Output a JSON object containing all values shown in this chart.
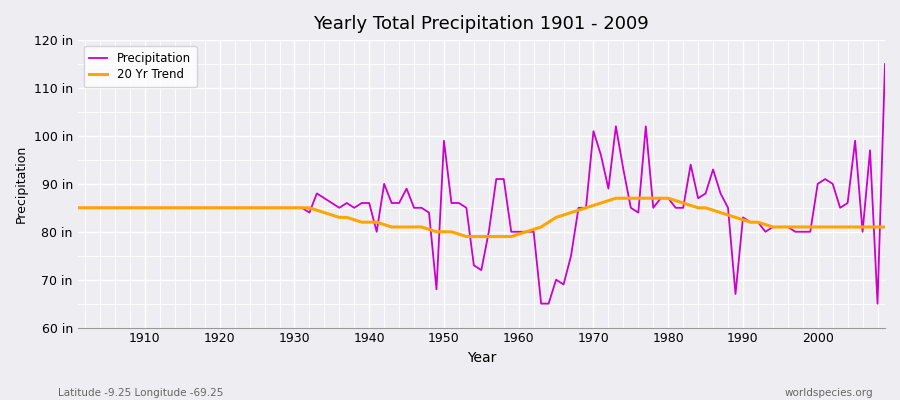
{
  "title": "Yearly Total Precipitation 1901 - 2009",
  "xlabel": "Year",
  "ylabel": "Precipitation",
  "xlim": [
    1901,
    2009
  ],
  "ylim": [
    60,
    120
  ],
  "yticks": [
    60,
    70,
    80,
    90,
    100,
    110,
    120
  ],
  "ytick_labels": [
    "60 in",
    "70 in",
    "80 in",
    "90 in",
    "100 in",
    "110 in",
    "120 in"
  ],
  "xticks": [
    1910,
    1920,
    1930,
    1940,
    1950,
    1960,
    1970,
    1980,
    1990,
    2000
  ],
  "precipitation_color": "#CC00CC",
  "trend_color": "#FFA500",
  "background_color": "#EEEEF2",
  "plot_bg_color": "#EEEEF2",
  "grid_color": "#FFFFFF",
  "subtitle": "Latitude -9.25 Longitude -69.25",
  "watermark": "worldspecies.org",
  "years": [
    1901,
    1902,
    1903,
    1904,
    1905,
    1906,
    1907,
    1908,
    1909,
    1910,
    1911,
    1912,
    1913,
    1914,
    1915,
    1916,
    1917,
    1918,
    1919,
    1920,
    1921,
    1922,
    1923,
    1924,
    1925,
    1926,
    1927,
    1928,
    1929,
    1930,
    1931,
    1932,
    1933,
    1934,
    1935,
    1936,
    1937,
    1938,
    1939,
    1940,
    1941,
    1942,
    1943,
    1944,
    1945,
    1946,
    1947,
    1948,
    1949,
    1950,
    1951,
    1952,
    1953,
    1954,
    1955,
    1956,
    1957,
    1958,
    1959,
    1960,
    1961,
    1962,
    1963,
    1964,
    1965,
    1966,
    1967,
    1968,
    1969,
    1970,
    1971,
    1972,
    1973,
    1974,
    1975,
    1976,
    1977,
    1978,
    1979,
    1980,
    1981,
    1982,
    1983,
    1984,
    1985,
    1986,
    1987,
    1988,
    1989,
    1990,
    1991,
    1992,
    1993,
    1994,
    1995,
    1996,
    1997,
    1998,
    1999,
    2000,
    2001,
    2002,
    2003,
    2004,
    2005,
    2006,
    2007,
    2008,
    2009
  ],
  "precipitation": [
    85,
    85,
    85,
    85,
    85,
    85,
    85,
    85,
    85,
    85,
    85,
    85,
    85,
    85,
    85,
    85,
    85,
    85,
    85,
    85,
    85,
    85,
    85,
    85,
    85,
    85,
    85,
    85,
    85,
    85,
    85,
    84,
    88,
    87,
    86,
    85,
    86,
    85,
    86,
    86,
    80,
    90,
    86,
    86,
    89,
    85,
    85,
    84,
    68,
    99,
    86,
    86,
    85,
    73,
    72,
    80,
    91,
    91,
    80,
    80,
    80,
    80,
    65,
    65,
    70,
    69,
    75,
    85,
    85,
    101,
    96,
    89,
    102,
    93,
    85,
    84,
    102,
    85,
    87,
    87,
    85,
    85,
    94,
    87,
    88,
    93,
    88,
    85,
    67,
    83,
    82,
    82,
    80,
    81,
    81,
    81,
    80,
    80,
    80,
    90,
    91,
    90,
    85,
    86,
    99,
    80,
    97,
    65,
    115
  ],
  "trend": [
    85,
    85,
    85,
    85,
    85,
    85,
    85,
    85,
    85,
    85,
    85,
    85,
    85,
    85,
    85,
    85,
    85,
    85,
    85,
    85,
    85,
    85,
    85,
    85,
    85,
    85,
    85,
    85,
    85,
    85,
    85,
    85,
    84.5,
    84,
    83.5,
    83,
    83,
    82.5,
    82,
    82,
    82,
    81.5,
    81,
    81,
    81,
    81,
    81,
    80.5,
    80,
    80,
    80,
    79.5,
    79,
    79,
    79,
    79,
    79,
    79,
    79,
    79.5,
    80,
    80.5,
    81,
    82,
    83,
    83.5,
    84,
    84.5,
    85,
    85.5,
    86,
    86.5,
    87,
    87,
    87,
    87,
    87,
    87,
    87,
    87,
    86.5,
    86,
    85.5,
    85,
    85,
    84.5,
    84,
    83.5,
    83,
    82.5,
    82,
    82,
    81.5,
    81,
    81,
    81,
    81,
    81,
    81,
    81,
    81,
    81,
    81,
    81,
    81,
    81,
    81,
    81,
    81
  ]
}
